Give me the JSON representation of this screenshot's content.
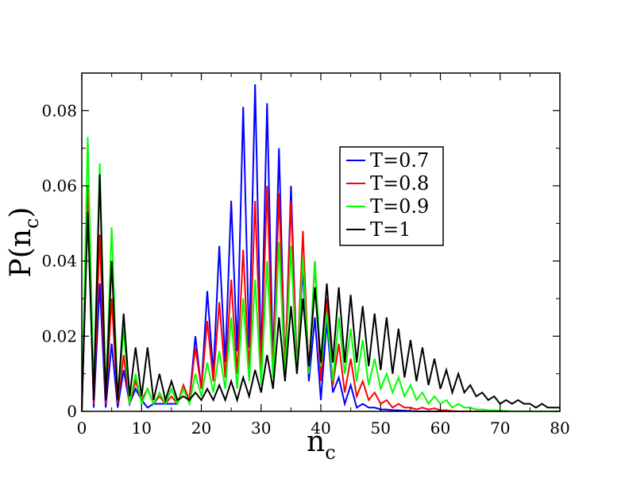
{
  "chart_data": {
    "type": "line",
    "xlabel": "n",
    "xlabel_sub": "c",
    "ylabel": "P(n",
    "ylabel_sub": "c",
    "ylabel_close": ")",
    "xlim": [
      0,
      80
    ],
    "ylim": [
      0,
      0.09
    ],
    "xticks": [
      {
        "value": 0,
        "label": "0"
      },
      {
        "value": 10,
        "label": "10"
      },
      {
        "value": 20,
        "label": "20"
      },
      {
        "value": 30,
        "label": "30"
      },
      {
        "value": 40,
        "label": "40"
      },
      {
        "value": 50,
        "label": "50"
      },
      {
        "value": 60,
        "label": "60"
      },
      {
        "value": 70,
        "label": "70"
      },
      {
        "value": 80,
        "label": "80"
      }
    ],
    "yticks": [
      {
        "value": 0,
        "label": "0"
      },
      {
        "value": 0.02,
        "label": "0.02"
      },
      {
        "value": 0.04,
        "label": "0.04"
      },
      {
        "value": 0.06,
        "label": "0.06"
      },
      {
        "value": 0.08,
        "label": "0.08"
      }
    ],
    "grid": false,
    "legend_position": "upper-right-center",
    "series": [
      {
        "name": "T=0.7",
        "color": "#0000ff",
        "x": [
          0,
          1,
          2,
          3,
          4,
          5,
          6,
          7,
          8,
          9,
          10,
          11,
          12,
          13,
          14,
          15,
          16,
          17,
          18,
          19,
          20,
          21,
          22,
          23,
          24,
          25,
          26,
          27,
          28,
          29,
          30,
          31,
          32,
          33,
          34,
          35,
          36,
          37,
          38,
          39,
          40,
          41,
          42,
          43,
          44,
          45,
          46,
          47,
          48,
          49,
          50,
          51,
          52,
          53,
          54,
          55,
          56,
          57,
          58,
          59,
          60,
          61,
          62,
          63,
          64,
          65,
          66,
          67,
          68,
          69,
          70,
          71,
          72,
          73,
          74,
          75,
          76,
          77,
          78,
          79,
          80
        ],
        "y": [
          0,
          0.058,
          0.001,
          0.034,
          0.001,
          0.018,
          0.001,
          0.011,
          0.002,
          0.006,
          0.003,
          0.001,
          0.002,
          0.002,
          0.002,
          0.002,
          0.002,
          0.006,
          0.003,
          0.02,
          0.006,
          0.032,
          0.01,
          0.044,
          0.013,
          0.056,
          0.016,
          0.081,
          0.017,
          0.087,
          0.013,
          0.082,
          0.012,
          0.07,
          0.01,
          0.06,
          0.011,
          0.038,
          0.008,
          0.025,
          0.003,
          0.024,
          0.005,
          0.009,
          0.002,
          0.007,
          0.001,
          0.002,
          0.001,
          0.001,
          0.0005,
          0.0005,
          0.0003,
          0.0003,
          0.0002,
          0.0001,
          0,
          0,
          0,
          0,
          0,
          0,
          0,
          0,
          0,
          0,
          0,
          0,
          0,
          0,
          0,
          0,
          0,
          0,
          0,
          0,
          0,
          0,
          0,
          0,
          0
        ]
      },
      {
        "name": "T=0.8",
        "color": "#ff0000",
        "x": [
          0,
          1,
          2,
          3,
          4,
          5,
          6,
          7,
          8,
          9,
          10,
          11,
          12,
          13,
          14,
          15,
          16,
          17,
          18,
          19,
          20,
          21,
          22,
          23,
          24,
          25,
          26,
          27,
          28,
          29,
          30,
          31,
          32,
          33,
          34,
          35,
          36,
          37,
          38,
          39,
          40,
          41,
          42,
          43,
          44,
          45,
          46,
          47,
          48,
          49,
          50,
          51,
          52,
          53,
          54,
          55,
          56,
          57,
          58,
          59,
          60,
          61,
          62,
          63,
          64,
          65,
          66,
          67,
          68,
          69,
          70,
          71,
          72,
          73,
          74,
          75,
          76,
          77,
          78,
          79,
          80
        ],
        "y": [
          0,
          0.06,
          0.002,
          0.047,
          0.002,
          0.03,
          0.002,
          0.015,
          0.002,
          0.008,
          0.003,
          0.006,
          0.002,
          0.004,
          0.002,
          0.004,
          0.002,
          0.007,
          0.003,
          0.017,
          0.006,
          0.024,
          0.008,
          0.029,
          0.009,
          0.035,
          0.01,
          0.043,
          0.01,
          0.056,
          0.011,
          0.06,
          0.01,
          0.058,
          0.011,
          0.056,
          0.01,
          0.048,
          0.01,
          0.04,
          0.008,
          0.03,
          0.007,
          0.018,
          0.005,
          0.014,
          0.004,
          0.008,
          0.003,
          0.005,
          0.002,
          0.003,
          0.001,
          0.002,
          0.001,
          0.001,
          0.0005,
          0.001,
          0.0005,
          0.0008,
          0.0003,
          0.0003,
          0.0001,
          0,
          0,
          0,
          0,
          0,
          0,
          0,
          0,
          0,
          0,
          0,
          0,
          0,
          0,
          0,
          0,
          0,
          0
        ]
      },
      {
        "name": "T=0.9",
        "color": "#00ff00",
        "x": [
          0,
          1,
          2,
          3,
          4,
          5,
          6,
          7,
          8,
          9,
          10,
          11,
          12,
          13,
          14,
          15,
          16,
          17,
          18,
          19,
          20,
          21,
          22,
          23,
          24,
          25,
          26,
          27,
          28,
          29,
          30,
          31,
          32,
          33,
          34,
          35,
          36,
          37,
          38,
          39,
          40,
          41,
          42,
          43,
          44,
          45,
          46,
          47,
          48,
          49,
          50,
          51,
          52,
          53,
          54,
          55,
          56,
          57,
          58,
          59,
          60,
          61,
          62,
          63,
          64,
          65,
          66,
          67,
          68,
          69,
          70,
          71,
          72,
          73,
          74,
          75,
          76,
          77,
          78,
          79,
          80
        ],
        "y": [
          0,
          0.073,
          0.005,
          0.066,
          0.004,
          0.049,
          0.003,
          0.022,
          0.002,
          0.01,
          0.002,
          0.006,
          0.002,
          0.005,
          0.002,
          0.006,
          0.002,
          0.006,
          0.002,
          0.01,
          0.004,
          0.013,
          0.005,
          0.016,
          0.006,
          0.025,
          0.006,
          0.03,
          0.008,
          0.035,
          0.007,
          0.04,
          0.009,
          0.045,
          0.009,
          0.044,
          0.01,
          0.041,
          0.01,
          0.04,
          0.012,
          0.026,
          0.008,
          0.025,
          0.01,
          0.022,
          0.008,
          0.019,
          0.007,
          0.014,
          0.006,
          0.01,
          0.005,
          0.009,
          0.004,
          0.007,
          0.003,
          0.005,
          0.002,
          0.004,
          0.002,
          0.003,
          0.001,
          0.002,
          0.001,
          0.001,
          0.0005,
          0.0005,
          0.0003,
          0.0003,
          0.0002,
          0.0001,
          0,
          0,
          0,
          0,
          0,
          0,
          0,
          0,
          0
        ]
      },
      {
        "name": "T=1",
        "color": "#000000",
        "x": [
          0,
          1,
          2,
          3,
          4,
          5,
          6,
          7,
          8,
          9,
          10,
          11,
          12,
          13,
          14,
          15,
          16,
          17,
          18,
          19,
          20,
          21,
          22,
          23,
          24,
          25,
          26,
          27,
          28,
          29,
          30,
          31,
          32,
          33,
          34,
          35,
          36,
          37,
          38,
          39,
          40,
          41,
          42,
          43,
          44,
          45,
          46,
          47,
          48,
          49,
          50,
          51,
          52,
          53,
          54,
          55,
          56,
          57,
          58,
          59,
          60,
          61,
          62,
          63,
          64,
          65,
          66,
          67,
          68,
          69,
          70,
          71,
          72,
          73,
          74,
          75,
          76,
          77,
          78,
          79,
          80
        ],
        "y": [
          0,
          0.053,
          0.003,
          0.063,
          0.003,
          0.04,
          0.003,
          0.026,
          0.004,
          0.017,
          0.004,
          0.017,
          0.003,
          0.01,
          0.003,
          0.008,
          0.003,
          0.004,
          0.003,
          0.005,
          0.003,
          0.006,
          0.003,
          0.007,
          0.003,
          0.008,
          0.003,
          0.009,
          0.004,
          0.011,
          0.005,
          0.015,
          0.006,
          0.025,
          0.008,
          0.028,
          0.01,
          0.03,
          0.012,
          0.033,
          0.013,
          0.034,
          0.013,
          0.033,
          0.013,
          0.031,
          0.013,
          0.028,
          0.012,
          0.026,
          0.011,
          0.025,
          0.01,
          0.022,
          0.009,
          0.019,
          0.008,
          0.017,
          0.007,
          0.014,
          0.006,
          0.011,
          0.005,
          0.01,
          0.005,
          0.007,
          0.004,
          0.005,
          0.003,
          0.004,
          0.002,
          0.003,
          0.002,
          0.003,
          0.002,
          0.002,
          0.001,
          0.002,
          0.001,
          0.001,
          0.001
        ]
      }
    ]
  }
}
